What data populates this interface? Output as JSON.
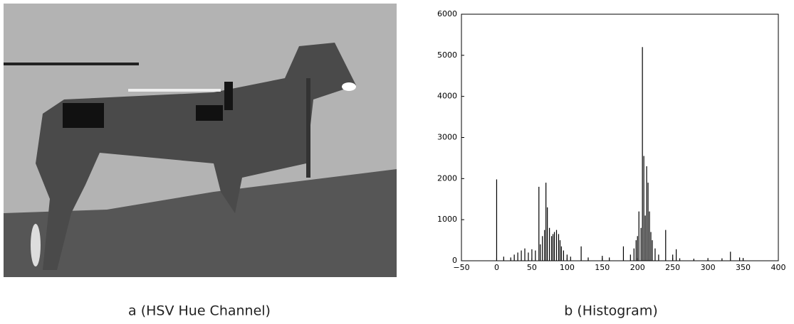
{
  "chart_data": {
    "type": "bar",
    "x": [
      0,
      10,
      20,
      25,
      30,
      35,
      40,
      45,
      50,
      55,
      60,
      62,
      65,
      68,
      70,
      72,
      75,
      78,
      80,
      82,
      85,
      88,
      90,
      92,
      95,
      100,
      105,
      120,
      130,
      150,
      160,
      180,
      190,
      195,
      198,
      200,
      202,
      205,
      207,
      209,
      211,
      213,
      215,
      217,
      219,
      221,
      225,
      230,
      240,
      250,
      255,
      260,
      280,
      300,
      320,
      332,
      345,
      350
    ],
    "values": [
      1980,
      100,
      80,
      150,
      200,
      250,
      300,
      200,
      280,
      250,
      1800,
      400,
      600,
      750,
      1900,
      1300,
      800,
      600,
      650,
      700,
      750,
      650,
      500,
      350,
      250,
      150,
      100,
      350,
      80,
      120,
      80,
      350,
      150,
      300,
      500,
      600,
      1200,
      800,
      5200,
      2550,
      1100,
      2300,
      1900,
      1200,
      700,
      500,
      300,
      150,
      750,
      150,
      280,
      60,
      50,
      40,
      60,
      220,
      80,
      60
    ],
    "color": "#000000",
    "xlim": [
      -50,
      400
    ],
    "xticks": [
      {
        "value": -50,
        "label": "−50"
      },
      0,
      50,
      100,
      150,
      200,
      250,
      300,
      350,
      400
    ],
    "ylim": [
      0,
      6000
    ],
    "yticks": [
      0,
      1000,
      2000,
      3000,
      4000,
      5000,
      6000
    ]
  },
  "captions": [
    "a (HSV Hue Channel)",
    "b (Histogram)"
  ]
}
